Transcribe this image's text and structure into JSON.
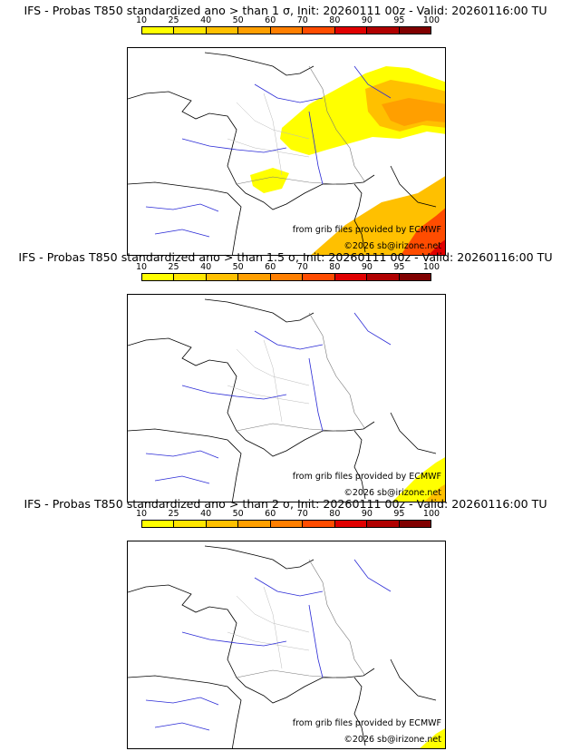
{
  "colorbar": {
    "ticks": [
      "10",
      "25",
      "40",
      "50",
      "60",
      "70",
      "80",
      "90",
      "95",
      "100"
    ],
    "colors": [
      "#ffff00",
      "#ffe600",
      "#ffc000",
      "#ff9f00",
      "#ff7f00",
      "#ff4c00",
      "#e00000",
      "#b00000",
      "#800000"
    ]
  },
  "panels": [
    {
      "title": "IFS - Probas T850  standardized ano > than 1 σ, Init: 20260111 00z - Valid: 20260116:00 TU",
      "credit_source": "from grib files provided by ECMWF",
      "credit_copyright": "©2026 sb@irizone.net"
    },
    {
      "title": "IFS - Probas T850  standardized ano > than 1.5 σ, Init: 20260111 00z - Valid: 20260116:00 TU",
      "credit_source": "from grib files provided by ECMWF",
      "credit_copyright": "©2026 sb@irizone.net"
    },
    {
      "title": "IFS - Probas T850  standardized ano > than 2 σ, Init: 20260111 00z - Valid: 20260116:00 TU",
      "credit_source": "from grib files provided by ECMWF",
      "credit_copyright": "©2026 sb@irizone.net"
    }
  ]
}
